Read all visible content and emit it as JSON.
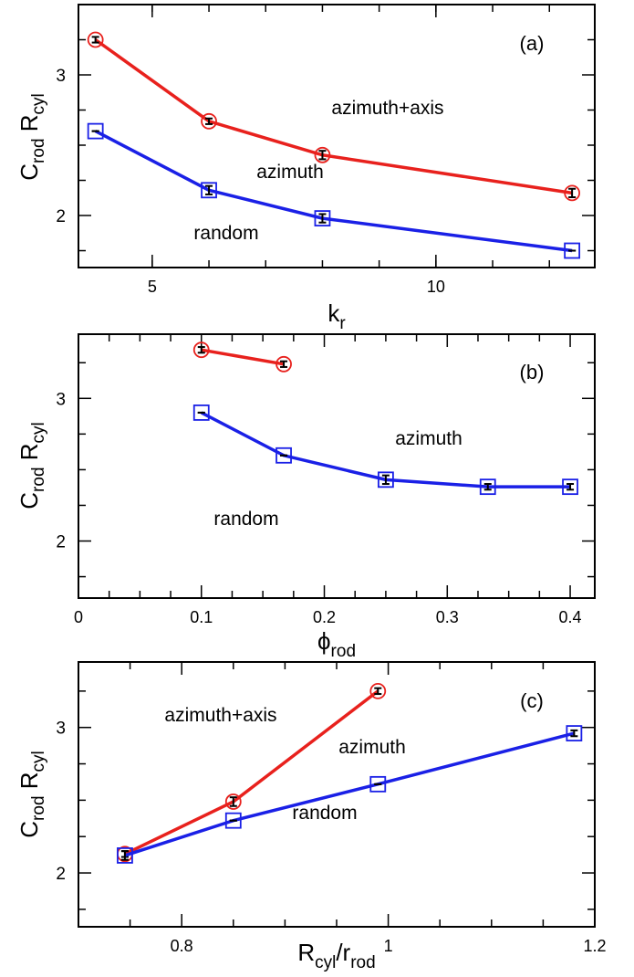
{
  "chart_data": [
    {
      "type": "line",
      "panel_label": "(a)",
      "xlabel": {
        "main": "k",
        "sub": "r"
      },
      "ylabel": {
        "c": "C",
        "c_sub": "rod",
        "r": " R",
        "r_sub": "cyl"
      },
      "xlim": [
        3.7,
        12.8
      ],
      "ylim": [
        1.63,
        3.5
      ],
      "xticks_labeled": [
        5,
        10
      ],
      "xtick_labels": [
        "5",
        "10"
      ],
      "yticks_labeled": [
        2,
        3
      ],
      "ytick_labels": [
        "2",
        "3"
      ],
      "grid": false,
      "annotations": [
        "azimuth+axis",
        "azimuth",
        "random"
      ],
      "series": [
        {
          "color": "#e8211d",
          "marker": "circle",
          "x": [
            4,
            6,
            8,
            12.4
          ],
          "y": [
            3.25,
            2.67,
            2.43,
            2.16
          ],
          "err": [
            0.02,
            0.02,
            0.03,
            0.03
          ]
        },
        {
          "color": "#1a20e6",
          "marker": "square",
          "x": [
            4,
            6,
            8,
            12.4
          ],
          "y": [
            2.6,
            2.18,
            1.98,
            1.75
          ],
          "err": [
            0.0,
            0.03,
            0.03,
            0.0
          ]
        }
      ]
    },
    {
      "type": "line",
      "panel_label": "(b)",
      "xlabel": {
        "main": "ϕ",
        "sub": "rod"
      },
      "ylabel": {
        "c": "C",
        "c_sub": "rod",
        "r": " R",
        "r_sub": "cyl"
      },
      "xlim": [
        0,
        0.42
      ],
      "ylim": [
        1.6,
        3.45
      ],
      "xticks_labeled": [
        0,
        0.1,
        0.2,
        0.3,
        0.4
      ],
      "xtick_labels": [
        "0",
        "0.1",
        "0.2",
        "0.3",
        "0.4"
      ],
      "yticks_labeled": [
        2,
        3
      ],
      "ytick_labels": [
        "2",
        "3"
      ],
      "grid": false,
      "annotations": [
        "azimuth",
        "random"
      ],
      "series": [
        {
          "color": "#e8211d",
          "marker": "circle",
          "x": [
            0.1,
            0.167
          ],
          "y": [
            3.34,
            3.24
          ],
          "err": [
            0.02,
            0.02
          ]
        },
        {
          "color": "#1a20e6",
          "marker": "square",
          "x": [
            0.1,
            0.167,
            0.25,
            0.333,
            0.4
          ],
          "y": [
            2.9,
            2.6,
            2.43,
            2.38,
            2.38
          ],
          "err": [
            0.0,
            0.0,
            0.03,
            0.02,
            0.02
          ]
        }
      ]
    },
    {
      "type": "line",
      "panel_label": "(c)",
      "xlabel": {
        "main": "R",
        "sub": "cyl",
        "mid": "/r",
        "sub2": "rod"
      },
      "ylabel": {
        "c": "C",
        "c_sub": "rod",
        "r": " R",
        "r_sub": "cyl"
      },
      "xlim": [
        0.7,
        1.2
      ],
      "ylim": [
        1.63,
        3.45
      ],
      "xticks_labeled": [
        0.8,
        1.0,
        1.2
      ],
      "xtick_labels": [
        "0.8",
        "1",
        "1.2"
      ],
      "yticks_labeled": [
        2,
        3
      ],
      "ytick_labels": [
        "2",
        "3"
      ],
      "grid": false,
      "annotations": [
        "azimuth+axis",
        "azimuth",
        "random"
      ],
      "series": [
        {
          "color": "#e8211d",
          "marker": "circle",
          "x": [
            0.745,
            0.85,
            0.99
          ],
          "y": [
            2.13,
            2.49,
            3.25
          ],
          "err": [
            0.02,
            0.03,
            0.02
          ]
        },
        {
          "color": "#1a20e6",
          "marker": "square",
          "x": [
            0.745,
            0.85,
            0.99,
            1.18
          ],
          "y": [
            2.12,
            2.36,
            2.61,
            2.96
          ],
          "err": [
            0.03,
            0.0,
            0.0,
            0.02
          ]
        }
      ]
    }
  ]
}
